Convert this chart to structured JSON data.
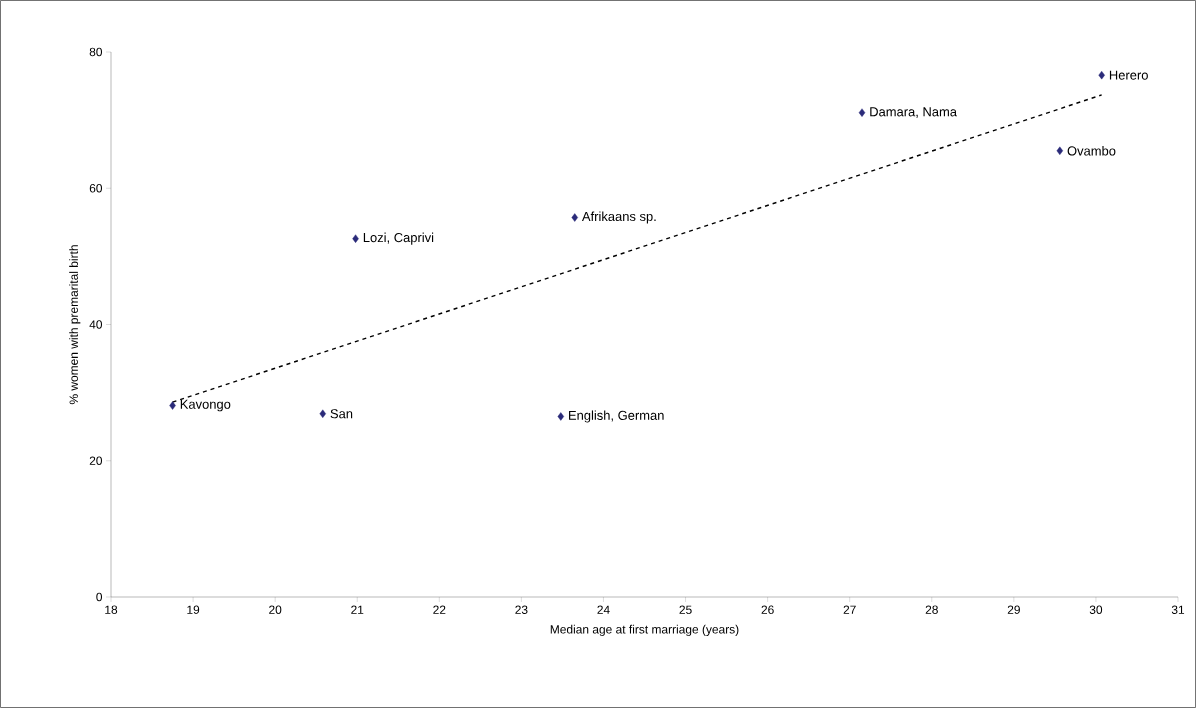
{
  "chart_data": {
    "type": "scatter",
    "xlabel": "Median age at first marriage (years)",
    "ylabel": "% women with premarital birth",
    "xlim": [
      18,
      31
    ],
    "xticks": [
      18,
      19,
      20,
      21,
      22,
      23,
      24,
      25,
      26,
      27,
      28,
      29,
      30,
      31
    ],
    "ylim": [
      0,
      80
    ],
    "yticks": [
      0,
      20,
      40,
      60,
      80
    ],
    "grid": false,
    "marker": "diamond",
    "series": [
      {
        "color": "#2b2b7a",
        "x": [
          18.75,
          20.58,
          20.98,
          23.48,
          23.65,
          27.15,
          29.56,
          30.07
        ],
        "values": [
          28.1,
          26.9,
          52.6,
          26.5,
          55.7,
          71.1,
          65.5,
          76.6
        ]
      },
      {
        "type": "line",
        "color": "#000000",
        "line_style": "dashed",
        "marker": "none",
        "x": [
          18.75,
          30.07
        ],
        "values": [
          28.6,
          73.7
        ]
      }
    ],
    "annotations": [
      {
        "text": "Kavongo",
        "x": 18.75,
        "y": 28.1
      },
      {
        "text": "San",
        "x": 20.58,
        "y": 26.9
      },
      {
        "text": "Lozi, Caprivi",
        "x": 20.98,
        "y": 52.6
      },
      {
        "text": "English, German",
        "x": 23.48,
        "y": 26.5
      },
      {
        "text": "Afrikaans sp.",
        "x": 23.65,
        "y": 55.7
      },
      {
        "text": "Damara, Nama",
        "x": 27.15,
        "y": 71.1
      },
      {
        "text": "Ovambo",
        "x": 29.56,
        "y": 65.5
      },
      {
        "text": "Herero",
        "x": 30.07,
        "y": 76.6
      }
    ]
  }
}
